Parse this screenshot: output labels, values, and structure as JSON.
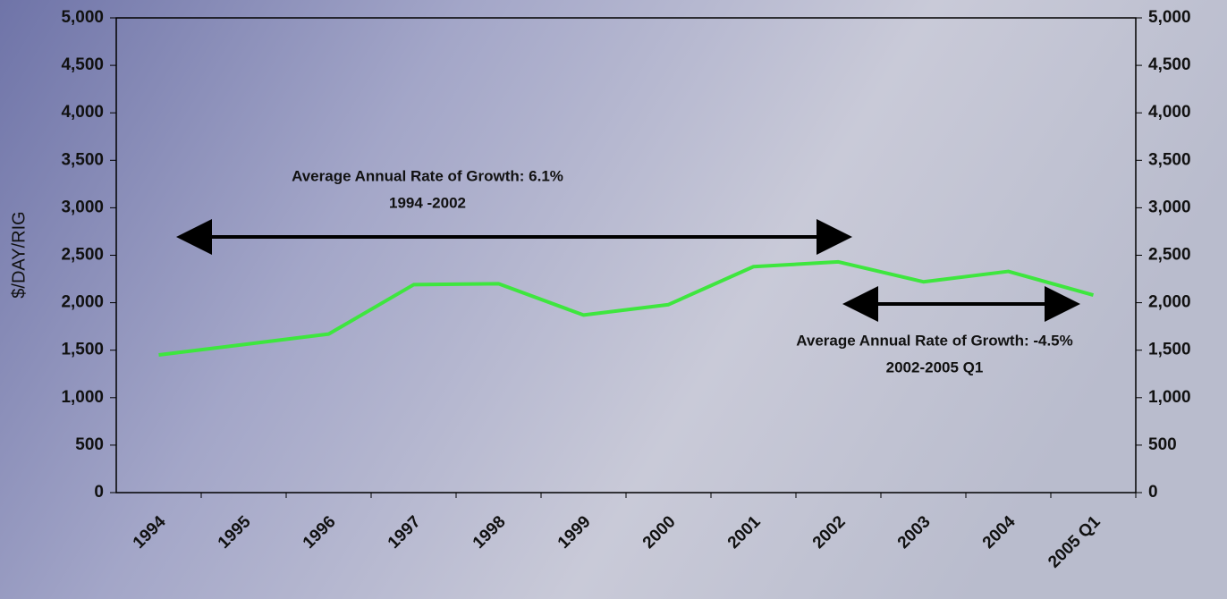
{
  "chart_data": {
    "type": "line",
    "y_label": "$/DAY/RIG",
    "categories": [
      "1994",
      "1995",
      "1996",
      "1997",
      "1998",
      "1999",
      "2000",
      "2001",
      "2002",
      "2003",
      "2004",
      "2005 Q1"
    ],
    "series": [
      {
        "name": "$/DAY/RIG",
        "color": "#3ee63e",
        "values": [
          1450,
          1560,
          1670,
          2190,
          2200,
          1870,
          1980,
          2380,
          2430,
          2220,
          2330,
          2080
        ]
      }
    ],
    "ylim": [
      0,
      5000
    ],
    "yticks": [
      0,
      500,
      {
        "value": 1000,
        "label": "1,000"
      },
      {
        "value": 1500,
        "label": "1,500"
      },
      {
        "value": 2000,
        "label": "2,000"
      },
      {
        "value": 2500,
        "label": "2,500"
      },
      {
        "value": 3000,
        "label": "3,000"
      },
      {
        "value": 3500,
        "label": "3,500"
      },
      {
        "value": 4000,
        "label": "4,000"
      },
      {
        "value": 4500,
        "label": "4,500"
      },
      {
        "value": 5000,
        "label": "5,000"
      }
    ],
    "y2lim": [
      0,
      5000
    ],
    "y2ticks": [
      0,
      500,
      {
        "value": 1000,
        "label": "1,000"
      },
      {
        "value": 1500,
        "label": "1,500"
      },
      {
        "value": 2000,
        "label": "2,000"
      },
      {
        "value": 2500,
        "label": "2,500"
      },
      {
        "value": 3000,
        "label": "3,000"
      },
      {
        "value": 3500,
        "label": "3,500"
      },
      {
        "value": 4000,
        "label": "4,000"
      },
      {
        "value": 4500,
        "label": "4,500"
      },
      {
        "value": 5000,
        "label": "5,000"
      }
    ],
    "annotations": [
      "Average Annual Rate of Growth:  6.1%",
      "1994 -2002",
      "Average Annual Rate of Growth:  -4.5%",
      "2002-2005 Q1"
    ]
  }
}
